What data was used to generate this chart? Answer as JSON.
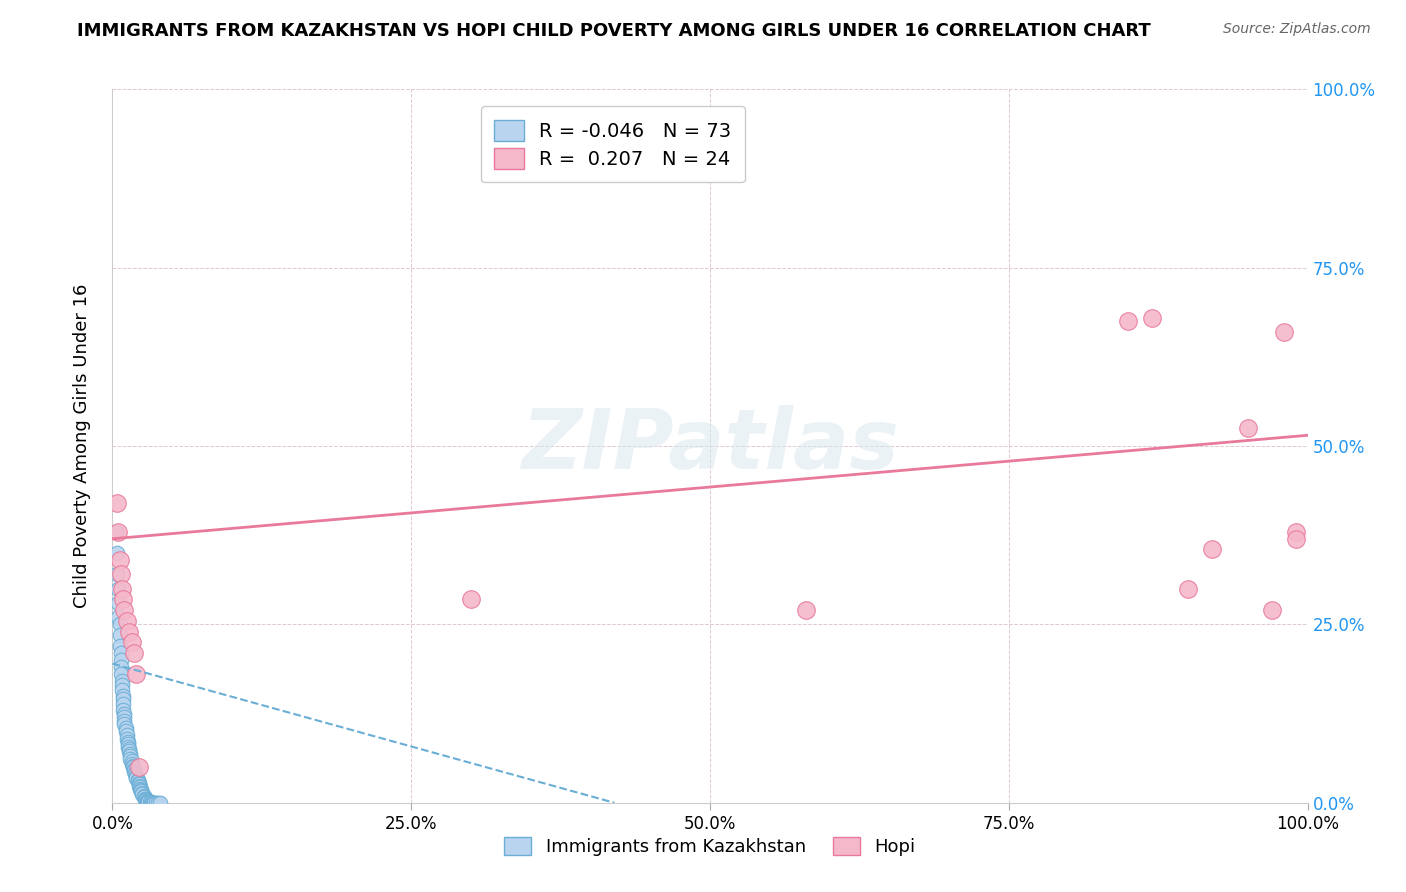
{
  "title": "IMMIGRANTS FROM KAZAKHSTAN VS HOPI CHILD POVERTY AMONG GIRLS UNDER 16 CORRELATION CHART",
  "source": "Source: ZipAtlas.com",
  "ylabel": "Child Poverty Among Girls Under 16",
  "xlim": [
    0,
    1.0
  ],
  "ylim": [
    0,
    1.0
  ],
  "x_ticks": [
    0.0,
    0.25,
    0.5,
    0.75,
    1.0
  ],
  "y_ticks": [
    0.0,
    0.25,
    0.5,
    0.75,
    1.0
  ],
  "x_tick_labels": [
    "0.0%",
    "25.0%",
    "50.0%",
    "75.0%",
    "100.0%"
  ],
  "y_tick_labels": [
    "0.0%",
    "25.0%",
    "50.0%",
    "75.0%",
    "100.0%"
  ],
  "blue_R": "-0.046",
  "blue_N": "73",
  "pink_R": "0.207",
  "pink_N": "24",
  "blue_color": "#b8d4ee",
  "pink_color": "#f5b8ca",
  "blue_edge_color": "#6aaed6",
  "pink_edge_color": "#e8799a",
  "blue_line_color": "#6aaed6",
  "pink_line_color": "#e8799a",
  "blue_scatter_x": [
    0.003,
    0.004,
    0.004,
    0.005,
    0.005,
    0.005,
    0.006,
    0.006,
    0.006,
    0.007,
    0.007,
    0.007,
    0.007,
    0.008,
    0.008,
    0.008,
    0.009,
    0.009,
    0.009,
    0.009,
    0.01,
    0.01,
    0.01,
    0.01,
    0.011,
    0.011,
    0.012,
    0.012,
    0.013,
    0.013,
    0.013,
    0.014,
    0.014,
    0.015,
    0.015,
    0.015,
    0.016,
    0.016,
    0.017,
    0.017,
    0.018,
    0.018,
    0.019,
    0.019,
    0.02,
    0.02,
    0.021,
    0.021,
    0.022,
    0.022,
    0.022,
    0.023,
    0.023,
    0.024,
    0.024,
    0.025,
    0.025,
    0.026,
    0.026,
    0.027,
    0.028,
    0.028,
    0.029,
    0.03,
    0.03,
    0.031,
    0.032,
    0.033,
    0.034,
    0.035,
    0.036,
    0.038,
    0.04
  ],
  "blue_scatter_y": [
    0.38,
    0.35,
    0.32,
    0.3,
    0.28,
    0.26,
    0.25,
    0.235,
    0.22,
    0.21,
    0.2,
    0.19,
    0.18,
    0.17,
    0.165,
    0.158,
    0.15,
    0.145,
    0.138,
    0.13,
    0.125,
    0.12,
    0.115,
    0.11,
    0.105,
    0.1,
    0.095,
    0.09,
    0.085,
    0.082,
    0.078,
    0.075,
    0.072,
    0.068,
    0.065,
    0.062,
    0.058,
    0.055,
    0.052,
    0.05,
    0.048,
    0.045,
    0.042,
    0.04,
    0.038,
    0.035,
    0.032,
    0.03,
    0.028,
    0.026,
    0.024,
    0.022,
    0.02,
    0.018,
    0.016,
    0.014,
    0.012,
    0.01,
    0.008,
    0.006,
    0.005,
    0.004,
    0.003,
    0.002,
    0.001,
    0.001,
    0.001,
    0.0,
    0.0,
    0.0,
    0.0,
    0.0,
    0.0
  ],
  "pink_scatter_x": [
    0.004,
    0.005,
    0.006,
    0.007,
    0.008,
    0.009,
    0.01,
    0.012,
    0.014,
    0.016,
    0.018,
    0.02,
    0.022,
    0.3,
    0.58,
    0.85,
    0.87,
    0.9,
    0.92,
    0.95,
    0.97,
    0.98,
    0.99,
    0.99
  ],
  "pink_scatter_y": [
    0.42,
    0.38,
    0.34,
    0.32,
    0.3,
    0.285,
    0.27,
    0.255,
    0.24,
    0.225,
    0.21,
    0.18,
    0.05,
    0.285,
    0.27,
    0.675,
    0.68,
    0.3,
    0.355,
    0.525,
    0.27,
    0.66,
    0.38,
    0.37
  ],
  "blue_trend_x": [
    0.0,
    0.42
  ],
  "blue_trend_y": [
    0.195,
    0.0
  ],
  "pink_trend_x": [
    0.0,
    1.0
  ],
  "pink_trend_y": [
    0.37,
    0.515
  ],
  "watermark": "ZIPatlas",
  "legend_label_blue": "Immigrants from Kazakhstan",
  "legend_label_pink": "Hopi"
}
